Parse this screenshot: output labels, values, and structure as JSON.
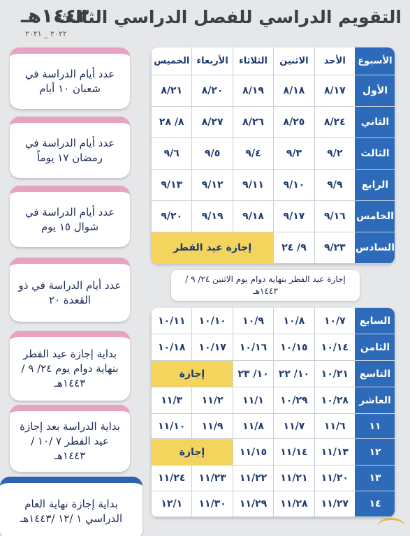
{
  "header": {
    "title": "التقويم الدراسي للفصل الدراسي الثالث",
    "hijri_year": "١٤٤٣هـ",
    "gregorian_years": "٢٠٢٢ _ ٢٠٢١"
  },
  "cards": [
    {
      "text": "عدد أيام الدراسة في شعبان ١٠ أيام"
    },
    {
      "text": "عدد أيام الدراسة في رمضان ١٧ يوماً"
    },
    {
      "text": "عدد أيام الدراسة في شوال ١٥ يوم"
    },
    {
      "text": "عدد أيام الدراسة في ذو القعدة ٢٠"
    },
    {
      "text": "بداية إجازة عيد الفطر بنهاية دوام يوم ٢٤/ ٩ /١٤٤٣هـ"
    },
    {
      "text": "بداية الدراسة بعد إجازة عيد الفطر ٧ /١٠ /١٤٤٣هـ"
    },
    {
      "text": "بداية إجازة نهاية العام الدراسي ١ /١٢ /١٤٤٣هـ"
    }
  ],
  "table_headers": [
    "الأسبوع",
    "الأحد",
    "الاثنين",
    "الثلاثاء",
    "الأربعاء",
    "الخميس"
  ],
  "table1_rows": [
    {
      "week": "الأول",
      "days": [
        "٨/١٧",
        "٨/١٨",
        "٨/١٩",
        "٨/٢٠",
        "٨/٢١"
      ]
    },
    {
      "week": "الثاني",
      "days": [
        "٨/٢٤",
        "٨/٢٥",
        "٨/٢٦",
        "٨/٢٧",
        "٨/ ٢٨"
      ]
    },
    {
      "week": "الثالث",
      "days": [
        "٩/٢",
        "٩/٣",
        "٩/٤",
        "٩/٥",
        "٩/٦"
      ]
    },
    {
      "week": "الرابع",
      "days": [
        "٩/٩",
        "٩/١٠",
        "٩/١١",
        "٩/١٢",
        "٩/١٣"
      ]
    },
    {
      "week": "الخامس",
      "days": [
        "٩/١٦",
        "٩/١٧",
        "٩/١٨",
        "٩/١٩",
        "٩/٢٠"
      ]
    },
    {
      "week": "السادس",
      "days": [
        "٩/٢٣",
        "٩/ ٢٤"
      ],
      "holiday": "إجازة عيد الفطر"
    }
  ],
  "note": "إجازة عيد الفطر بنهاية دوام يوم الاثنين ٢٤/ ٩ /١٤٤٣هـ",
  "table2_rows": [
    {
      "week": "السابع",
      "days": [
        "١٠/٧",
        "١٠/٨",
        "١٠/٩",
        "١٠/١٠",
        "١٠/١١"
      ]
    },
    {
      "week": "الثامن",
      "days": [
        "١٠/١٤",
        "١٠/١٥",
        "١٠/١٦",
        "١٠/١٧",
        "١٠/١٨"
      ]
    },
    {
      "week": "التاسع",
      "days": [
        "١٠/٢١",
        "١٠/ ٢٢",
        "١٠/ ٢٣"
      ],
      "holiday": "إجازة"
    },
    {
      "week": "العاشر",
      "days": [
        "١٠/٢٨",
        "١٠/٢٩",
        "١١/١",
        "١١/٢",
        "١١/٣"
      ]
    },
    {
      "week": "١١",
      "days": [
        "١١/٦",
        "١١/٧",
        "١١/٨",
        "١١/٩",
        "١١/١٠"
      ]
    },
    {
      "week": "١٢",
      "days": [
        "١١/١٣",
        "١١/١٤",
        "١١/١٥"
      ],
      "holiday": "إجازة"
    },
    {
      "week": "١٣",
      "days": [
        "١١/٢٠",
        "١١/٢١",
        "١١/٢٢",
        "١١/٢٣",
        "١١/٢٤"
      ]
    },
    {
      "week": "١٤",
      "days": [
        "١١/٢٧",
        "١١/٢٨",
        "١١/٢٩",
        "١١/٣٠",
        "١٢/١"
      ]
    }
  ],
  "colors": {
    "week_column": "#2d6ab9",
    "holiday": "#f3d55e",
    "card_accent": "#e6a4c0",
    "card_accent_last": "#2c64b0"
  }
}
